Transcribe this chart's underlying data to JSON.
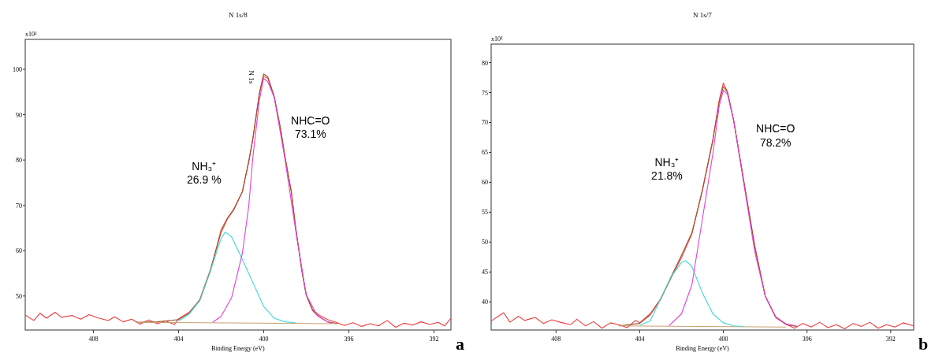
{
  "chart_data": [
    {
      "type": "line",
      "title": "N 1s/8",
      "xlabel": "Binding Energy (eV)",
      "ylabel": "x10²",
      "xlim": [
        411.2,
        391.2
      ],
      "ylim": [
        42.5,
        106.6
      ],
      "xticks": [
        408,
        404,
        400,
        396,
        392
      ],
      "yticks": [
        50,
        60,
        70,
        80,
        90,
        100
      ],
      "grid": false,
      "annotations": [
        "NH₃⁺\n26.9 %",
        "NHC=O\n73.1%",
        "N 1s",
        "a"
      ],
      "series": [
        {
          "color": "#ee3b3b",
          "x": [
            411.2,
            410.8,
            410.5,
            410.2,
            409.8,
            409.5,
            409,
            408.6,
            408.2,
            407.8,
            407.3,
            407,
            406.6,
            406.2,
            405.8,
            405.4,
            405,
            404.6,
            404.2,
            404,
            403.5,
            403,
            402.5,
            402,
            401.7,
            401.4,
            401,
            400.7,
            400.5,
            400.2,
            400,
            399.8,
            399.5,
            399.2,
            399,
            398.7,
            398.5,
            398.2,
            398,
            397.7,
            397.4,
            397,
            396.6,
            396.2,
            395.8,
            395.4,
            395,
            394.6,
            394.2,
            393.8,
            393.4,
            393,
            392.6,
            392.2,
            391.8,
            391.5,
            391.2
          ],
          "values": [
            45.8,
            44.6,
            46.2,
            45.1,
            46.4,
            45.3,
            45.7,
            44.9,
            45.9,
            45.2,
            44.6,
            45.4,
            44.3,
            44.9,
            43.8,
            44.7,
            43.9,
            44.5,
            43.7,
            45.0,
            46.4,
            49.0,
            55.5,
            64.6,
            67.2,
            69.2,
            73.0,
            79.5,
            84.7,
            94.5,
            98.5,
            98.0,
            93.8,
            86.7,
            80.8,
            73.0,
            65.3,
            55.5,
            50.3,
            47.0,
            45.8,
            44.8,
            44.2,
            43.5,
            44.1,
            43.3,
            43.9,
            43.4,
            44.6,
            43.1,
            44.0,
            43.6,
            44.3,
            43.7,
            44.2,
            43.4,
            45.1
          ]
        },
        {
          "color": "#a0522d",
          "x": [
            406,
            405,
            404,
            403.5,
            403,
            402.5,
            402,
            401.7,
            401.4,
            401,
            400.7,
            400.5,
            400.2,
            400,
            399.8,
            399.5,
            399.2,
            399,
            398.7,
            398.5,
            398.2,
            398,
            397.7,
            397.4,
            397,
            396.5
          ],
          "values": [
            44.2,
            44.3,
            44.8,
            46.2,
            49.2,
            55.8,
            64.0,
            67.0,
            69.0,
            73.0,
            79.8,
            85.0,
            94.8,
            99.0,
            98.3,
            94.0,
            86.8,
            80.8,
            73.0,
            65.2,
            55.4,
            50.2,
            46.8,
            45.4,
            44.3,
            43.9
          ]
        },
        {
          "color": "#c8a070",
          "x": [
            406,
            396.5
          ],
          "values": [
            44.2,
            43.9
          ]
        },
        {
          "color": "#40d8d8",
          "x": [
            404,
            403.5,
            403,
            402.5,
            402,
            401.8,
            401.5,
            401,
            400.5,
            400,
            399.5,
            399,
            398.5
          ],
          "values": [
            44.5,
            46.0,
            49.0,
            55.5,
            62.7,
            64.1,
            63.0,
            58.1,
            52.9,
            47.7,
            45.1,
            44.3,
            44.1
          ]
        },
        {
          "color": "#e040e0",
          "x": [
            402.4,
            402,
            401.5,
            401,
            400.7,
            400.5,
            400.2,
            400,
            399.8,
            399.5,
            399,
            398.5,
            398,
            397.5,
            397,
            396.8
          ],
          "values": [
            44.2,
            45.5,
            49.7,
            59.4,
            69.8,
            80.8,
            93.2,
            98.0,
            97.2,
            93.8,
            80.2,
            64.6,
            50.3,
            45.8,
            44.3,
            44.0
          ]
        }
      ]
    },
    {
      "type": "line",
      "title": "N 1s/7",
      "xlabel": "Binding Energy (eV)",
      "ylabel": "x10²",
      "xlim": [
        411.1,
        390.9
      ],
      "ylim": [
        35.3,
        83.1
      ],
      "xticks": [
        408,
        404,
        400,
        396,
        392
      ],
      "yticks": [
        40,
        45,
        50,
        55,
        60,
        65,
        70,
        75,
        80
      ],
      "grid": false,
      "annotations": [
        "NH₃⁺\n21.8%",
        "NHC=O\n78.2%",
        "b"
      ],
      "series": [
        {
          "color": "#ee3b3b",
          "x": [
            411.1,
            410.8,
            410.5,
            410.2,
            409.8,
            409.5,
            409,
            408.6,
            408.2,
            407.8,
            407.3,
            407,
            406.6,
            406.2,
            405.8,
            405.4,
            405,
            404.6,
            404.2,
            404,
            403.5,
            403,
            402.5,
            402,
            401.5,
            401,
            400.5,
            400.2,
            400,
            399.8,
            399.5,
            399,
            398.5,
            398,
            397.5,
            397,
            396.6,
            396.2,
            395.8,
            395.4,
            395,
            394.6,
            394.2,
            393.8,
            393.4,
            393,
            392.6,
            392.2,
            391.8,
            391.4,
            390.9
          ],
          "values": [
            36.8,
            37.5,
            38.2,
            36.6,
            37.6,
            36.9,
            37.4,
            36.4,
            37.0,
            36.6,
            36.2,
            37.1,
            36.0,
            36.7,
            35.6,
            36.5,
            36.2,
            35.7,
            36.9,
            36.5,
            38.0,
            40.5,
            44.0,
            47.4,
            51.4,
            58.8,
            67.2,
            73.7,
            76.6,
            75.1,
            70.2,
            59.8,
            49.4,
            41.0,
            37.5,
            36.3,
            35.6,
            36.4,
            35.8,
            36.6,
            35.7,
            36.2,
            35.5,
            36.4,
            35.9,
            36.6,
            35.6,
            36.2,
            35.8,
            36.5,
            36.0
          ]
        },
        {
          "color": "#a0522d",
          "x": [
            405,
            404,
            403.5,
            403,
            402.5,
            402,
            401.5,
            401,
            400.5,
            400.2,
            400,
            399.8,
            399.5,
            399,
            398.5,
            398,
            397.5,
            397,
            396.5
          ],
          "values": [
            36.0,
            36.4,
            37.8,
            40.4,
            44.2,
            47.8,
            51.6,
            58.6,
            67.0,
            73.4,
            76.0,
            75.0,
            70.2,
            59.6,
            49.2,
            41.0,
            37.4,
            36.2,
            35.9
          ]
        },
        {
          "color": "#c8a070",
          "x": [
            405,
            397
          ],
          "values": [
            36.0,
            35.8
          ]
        },
        {
          "color": "#40d8d8",
          "x": [
            404,
            403.5,
            403,
            402.5,
            402,
            401.8,
            401.5,
            401,
            400.5,
            400,
            399.5,
            399
          ],
          "values": [
            36.1,
            36.8,
            40.5,
            44.2,
            46.6,
            46.9,
            45.9,
            41.5,
            38.0,
            36.5,
            36.0,
            35.9
          ]
        },
        {
          "color": "#e040e0",
          "x": [
            402.6,
            402,
            401.5,
            401,
            400.5,
            400.2,
            400,
            399.8,
            399.5,
            399,
            398.5,
            398,
            397.5,
            397,
            396.5
          ],
          "values": [
            36.0,
            38.0,
            42.9,
            53.9,
            64.8,
            72.7,
            75.4,
            74.7,
            70.2,
            59.3,
            48.4,
            41.0,
            37.5,
            36.3,
            36.0
          ]
        }
      ]
    }
  ]
}
